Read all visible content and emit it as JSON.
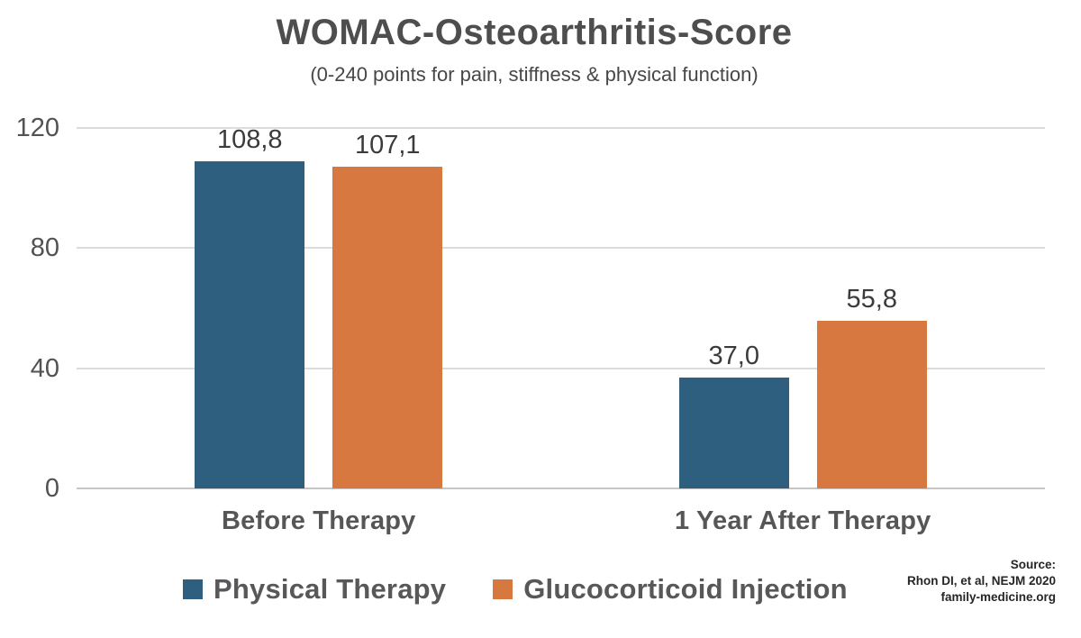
{
  "header": {
    "title": "WOMAC-Osteoarthritis-Score",
    "subtitle": "(0-240 points for pain, stiffness & physical function)"
  },
  "chart_data": {
    "type": "bar",
    "title": "WOMAC-Osteoarthritis-Score",
    "subtitle": "(0-240 points for pain, stiffness & physical function)",
    "categories": [
      "Before Therapy",
      "1 Year After Therapy"
    ],
    "series": [
      {
        "name": "Physical Therapy",
        "color": "#2e5f7f",
        "values": [
          108.8,
          37.0
        ],
        "value_labels": [
          "108,8",
          "37,0"
        ]
      },
      {
        "name": "Glucocorticoid Injection",
        "color": "#d77840",
        "values": [
          107.1,
          55.8
        ],
        "value_labels": [
          "107,1",
          "55,8"
        ]
      }
    ],
    "y_axis": {
      "min": 0,
      "max": 120,
      "ticks": [
        0,
        40,
        80,
        120
      ],
      "tick_labels": [
        "0",
        "40",
        "80",
        "120"
      ]
    },
    "grid": true,
    "legend_position": "bottom"
  },
  "source": {
    "lines": [
      "Source:",
      "Rhon DI, et al, NEJM 2020",
      "family-medicine.org"
    ]
  },
  "colors": {
    "series_physical_therapy": "#2e5f7f",
    "series_glucocorticoid": "#d77840",
    "gridline": "#dcdcdc",
    "axis_line": "#c6c6c6",
    "title_text": "#4e4e4e",
    "value_text": "#3b3b3b",
    "background": "#ffffff"
  }
}
